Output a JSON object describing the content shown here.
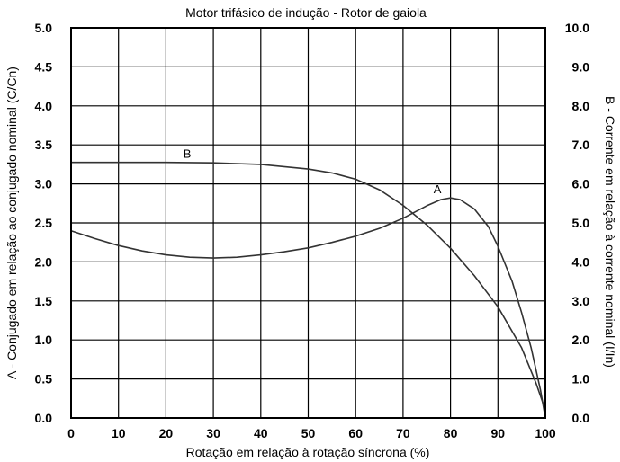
{
  "chart_data": {
    "type": "line",
    "title": "Motor trifásico de indução - Rotor de gaiola",
    "xlabel": "Rotação em relação à rotação síncrona (%)",
    "ylabel_left": "A - Conjugado em relação ao conjugado nominal (C/Cn)",
    "ylabel_right": "B - Corrente em relação à corrente nominal (I/In)",
    "xlim": [
      0,
      100
    ],
    "ylim_left": [
      0,
      5
    ],
    "ylim_right": [
      0,
      10
    ],
    "grid": true,
    "x_ticks": [
      "0",
      "10",
      "20",
      "30",
      "40",
      "50",
      "60",
      "70",
      "80",
      "90",
      "100"
    ],
    "y_left_ticks": [
      "0.0",
      "0.5",
      "1.0",
      "1.5",
      "2.0",
      "2.5",
      "3.0",
      "3.5",
      "4.0",
      "4.5",
      "5.0"
    ],
    "y_right_ticks": [
      "0.0",
      "1.0",
      "2.0",
      "3.0",
      "4.0",
      "5.0",
      "6.0",
      "7.0",
      "8.0",
      "9.0",
      "10.0"
    ],
    "series": [
      {
        "name": "A",
        "axis": "left",
        "x": [
          0,
          5,
          10,
          15,
          20,
          25,
          30,
          35,
          40,
          45,
          50,
          55,
          60,
          65,
          70,
          75,
          78,
          80,
          82,
          85,
          88,
          90,
          93,
          95,
          97,
          99,
          100
        ],
        "y": [
          2.4,
          2.3,
          2.21,
          2.14,
          2.09,
          2.06,
          2.05,
          2.06,
          2.09,
          2.13,
          2.18,
          2.25,
          2.33,
          2.43,
          2.56,
          2.72,
          2.8,
          2.82,
          2.8,
          2.68,
          2.45,
          2.2,
          1.75,
          1.35,
          0.9,
          0.35,
          0.0
        ]
      },
      {
        "name": "B",
        "axis": "right",
        "x": [
          0,
          10,
          20,
          30,
          40,
          50,
          55,
          60,
          65,
          70,
          75,
          80,
          85,
          90,
          95,
          98,
          100
        ],
        "y": [
          6.55,
          6.55,
          6.55,
          6.54,
          6.5,
          6.38,
          6.28,
          6.12,
          5.85,
          5.45,
          4.95,
          4.35,
          3.65,
          2.85,
          1.8,
          0.9,
          0.2
        ]
      }
    ]
  }
}
